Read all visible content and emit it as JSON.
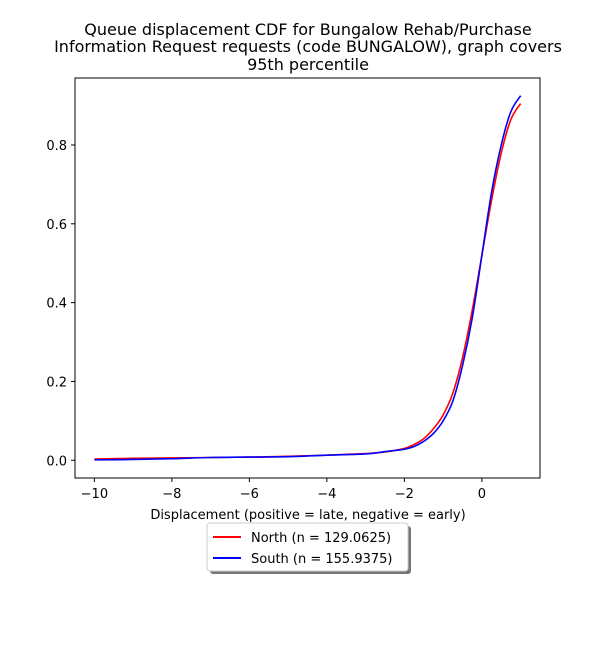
{
  "chart_data": {
    "type": "line",
    "title_lines": [
      "Queue displacement CDF for Bungalow Rehab/Purchase",
      "Information Request  requests (code BUNGALOW), graph covers",
      "95th percentile"
    ],
    "xlabel": "Displacement (positive = late, negative = early)",
    "ylabel": "",
    "xlim": [
      -10.5,
      1.5
    ],
    "ylim": [
      -0.045,
      0.97
    ],
    "x_ticks": [
      -10,
      -8,
      -6,
      -4,
      -2,
      0
    ],
    "x_tick_labels": [
      "−10",
      "−8",
      "−6",
      "−4",
      "−2",
      "0"
    ],
    "y_ticks": [
      0.0,
      0.2,
      0.4,
      0.6,
      0.8
    ],
    "y_tick_labels": [
      "0.0",
      "0.2",
      "0.4",
      "0.6",
      "0.8"
    ],
    "grid": false,
    "legend_position": "below-center",
    "series": [
      {
        "name": "North (n = 129.0625)",
        "color": "#ff0000",
        "x": [
          -10,
          -9,
          -8,
          -7,
          -6,
          -5,
          -4,
          -3,
          -2.5,
          -2,
          -1.75,
          -1.5,
          -1.25,
          -1,
          -0.75,
          -0.5,
          -0.25,
          0,
          0.25,
          0.5,
          0.75,
          1
        ],
        "y": [
          0.003,
          0.005,
          0.006,
          0.007,
          0.008,
          0.01,
          0.013,
          0.017,
          0.021,
          0.03,
          0.04,
          0.055,
          0.08,
          0.115,
          0.17,
          0.26,
          0.38,
          0.52,
          0.66,
          0.78,
          0.865,
          0.905
        ]
      },
      {
        "name": "South (n = 155.9375)",
        "color": "#0000ff",
        "x": [
          -10,
          -9,
          -8,
          -7,
          -6,
          -5,
          -4,
          -3,
          -2.5,
          -2,
          -1.75,
          -1.5,
          -1.25,
          -1,
          -0.75,
          -0.5,
          -0.25,
          0,
          0.25,
          0.5,
          0.75,
          1
        ],
        "y": [
          0.001,
          0.002,
          0.004,
          0.007,
          0.008,
          0.009,
          0.013,
          0.016,
          0.022,
          0.028,
          0.035,
          0.048,
          0.068,
          0.1,
          0.15,
          0.24,
          0.36,
          0.52,
          0.68,
          0.8,
          0.885,
          0.925
        ]
      }
    ]
  }
}
